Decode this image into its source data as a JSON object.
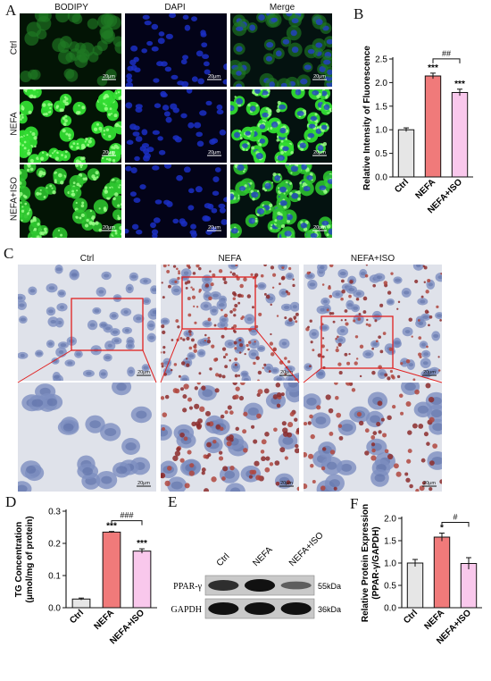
{
  "panels": {
    "A": "A",
    "B": "B",
    "C": "C",
    "D": "D",
    "E": "E",
    "F": "F"
  },
  "fluorescence": {
    "columns": [
      "BODIPY",
      "DAPI",
      "Merge"
    ],
    "rows": [
      "Ctrl",
      "NEFA",
      "NEFA+ISO"
    ],
    "scale_label": "20μm"
  },
  "oil_red": {
    "columns": [
      "Ctrl",
      "NEFA",
      "NEFA+ISO"
    ],
    "scale_label": "20μm"
  },
  "western": {
    "lanes": [
      "Ctrl",
      "NEFA",
      "NEFA+ISO"
    ],
    "bands": [
      {
        "name": "PPAR-γ",
        "size": "55kDa",
        "intensity": [
          0.75,
          1.0,
          0.35
        ]
      },
      {
        "name": "GAPDH",
        "size": "36kDa",
        "intensity": [
          1.0,
          1.0,
          1.0
        ]
      }
    ]
  },
  "chart_data": [
    {
      "panel": "B",
      "type": "bar",
      "categories": [
        "Ctrl",
        "NEFA",
        "NEFA+ISO"
      ],
      "values": [
        1.0,
        2.14,
        1.79
      ],
      "errors": [
        0.04,
        0.06,
        0.07
      ],
      "ylabel": "Relative Intensity of Fluorescence",
      "ylim": [
        0,
        2.5
      ],
      "yticks": [
        "0.0",
        "0.5",
        "1.0",
        "1.5",
        "2.0",
        "2.5"
      ],
      "ytick_values": [
        0,
        0.5,
        1.0,
        1.5,
        2.0,
        2.5
      ],
      "bar_labels": [
        "",
        "***",
        "***"
      ],
      "bracket": {
        "from": 1,
        "to": 2,
        "label": "##"
      },
      "colors": [
        "#e6e6e6",
        "#f07a7a",
        "#f9c8ec"
      ]
    },
    {
      "panel": "D",
      "type": "bar",
      "categories": [
        "Ctrl",
        "NEFA",
        "NEFA+ISO"
      ],
      "values": [
        0.027,
        0.235,
        0.176
      ],
      "errors": [
        0.003,
        0.002,
        0.007
      ],
      "ylabel_lines": [
        "TG Concentration",
        "(μmol/mg of protein)"
      ],
      "ylim": [
        0,
        0.3
      ],
      "yticks": [
        "0.0",
        "0.1",
        "0.2",
        "0.3"
      ],
      "ytick_values": [
        0,
        0.1,
        0.2,
        0.3
      ],
      "bar_labels": [
        "",
        "***",
        "***"
      ],
      "bracket": {
        "from": 1,
        "to": 2,
        "label": "###"
      },
      "colors": [
        "#e6e6e6",
        "#f07a7a",
        "#f9c8ec"
      ]
    },
    {
      "panel": "F",
      "type": "bar",
      "categories": [
        "Ctrl",
        "NEFA",
        "NEFA+ISO"
      ],
      "values": [
        1.0,
        1.58,
        0.99
      ],
      "errors": [
        0.08,
        0.09,
        0.13
      ],
      "ylabel_lines": [
        "Relative Protein Expression",
        "(PPAR-γ/GAPDH)"
      ],
      "ylim": [
        0,
        2.0
      ],
      "yticks": [
        "0.0",
        "0.5",
        "1.0",
        "1.5",
        "2.0"
      ],
      "ytick_values": [
        0,
        0.5,
        1.0,
        1.5,
        2.0
      ],
      "bar_labels": [
        "",
        "*",
        ""
      ],
      "bracket": {
        "from": 1,
        "to": 2,
        "label": "#"
      },
      "colors": [
        "#e6e6e6",
        "#f07a7a",
        "#f9c8ec"
      ]
    }
  ]
}
